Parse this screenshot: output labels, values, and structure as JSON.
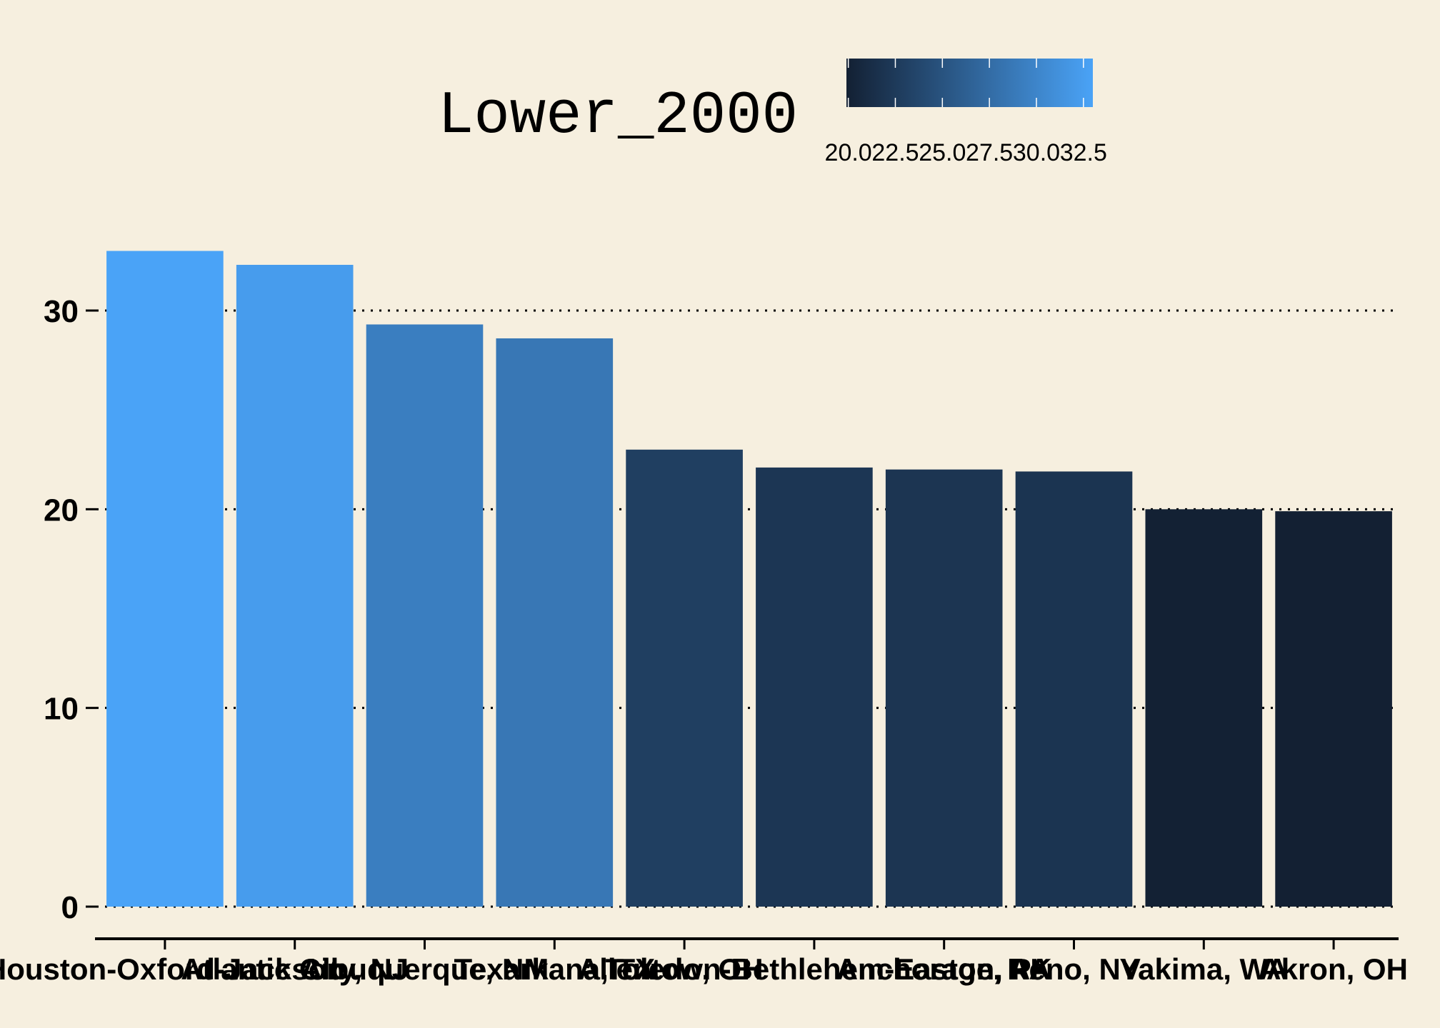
{
  "chart_data": {
    "type": "bar",
    "title": "Lower_2000",
    "xlabel": "",
    "ylabel": "",
    "ylim": [
      0,
      33
    ],
    "yticks": [
      0,
      10,
      20,
      30
    ],
    "grid": true,
    "legend_position": "top",
    "categories": [
      "Houston-Oxford-Jackson",
      "Atlantic City, NJ",
      "Albuquerque, NM",
      "Texarkana, TX",
      "Toledo, OH",
      "Allentown-Bethlehem-Easton, PA",
      "Anchorage, AK",
      "Reno, NV",
      "Yakima, WA",
      "Akron, OH"
    ],
    "values": [
      33.0,
      32.3,
      29.3,
      28.6,
      23.0,
      22.1,
      22.0,
      21.9,
      20.0,
      19.9
    ],
    "color_scale": {
      "low_color": "#132033",
      "high_color": "#4aa3f7",
      "min": 19.9,
      "max": 33.0,
      "ticks": [
        "20.0",
        "22.5",
        "25.0",
        "27.5",
        "30.0",
        "32.5"
      ]
    }
  }
}
